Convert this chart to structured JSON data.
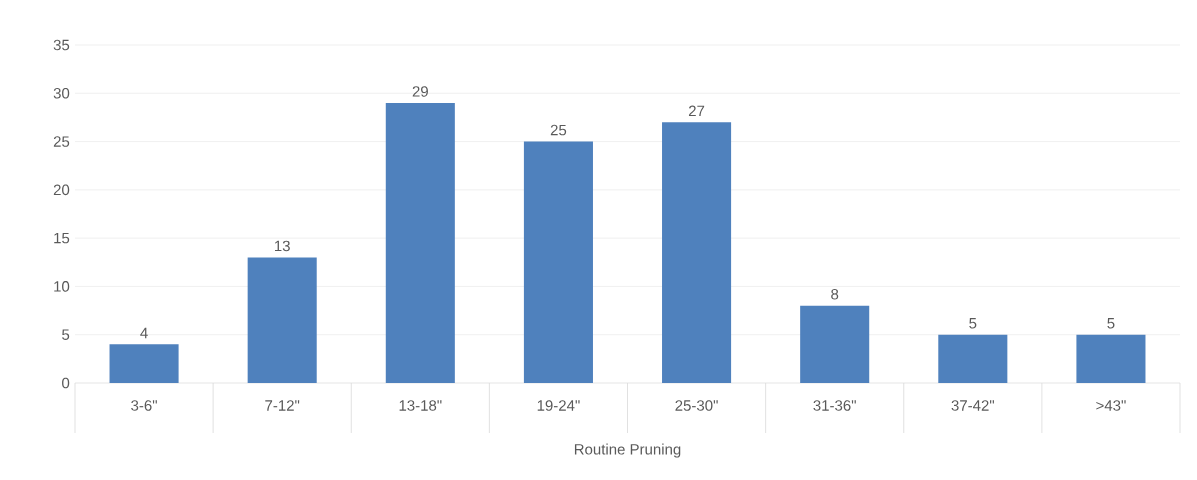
{
  "chart_data": {
    "type": "bar",
    "xlabel": "Routine Pruning",
    "categories": [
      "3-6\"",
      "7-12\"",
      "13-18\"",
      "19-24\"",
      "25-30\"",
      "31-36\"",
      "37-42\"",
      ">43\""
    ],
    "values": [
      4,
      13,
      29,
      25,
      27,
      8,
      5,
      5
    ],
    "color": "#4f81bd",
    "ylim": [
      0,
      35
    ],
    "yticks": [
      0,
      5,
      10,
      15,
      20,
      25,
      30,
      35
    ],
    "grid": "y",
    "data_labels": true
  }
}
